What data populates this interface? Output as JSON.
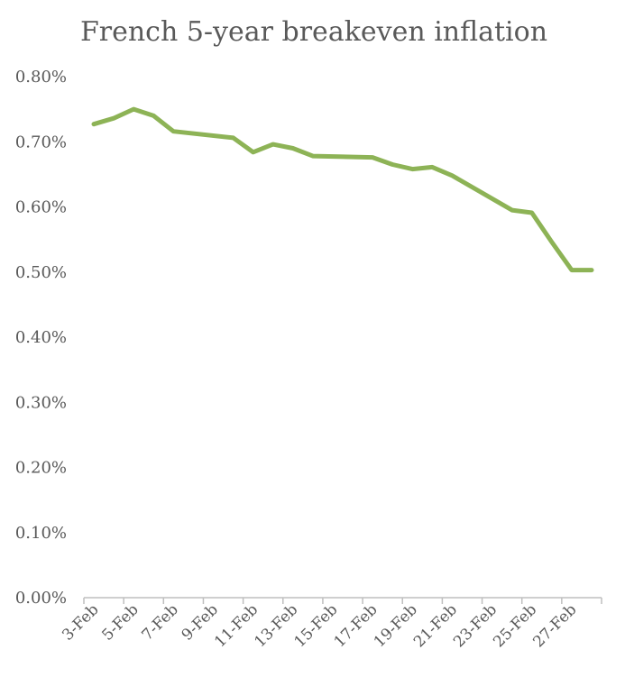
{
  "chart_data": {
    "type": "line",
    "title": "French 5-year breakeven inflation",
    "xlabel": "",
    "ylabel": "",
    "ylim": [
      0,
      0.8
    ],
    "yticks": [
      "0.00%",
      "0.10%",
      "0.20%",
      "0.30%",
      "0.40%",
      "0.50%",
      "0.60%",
      "0.70%",
      "0.80%"
    ],
    "categories": [
      "3-Feb",
      "4-Feb",
      "5-Feb",
      "6-Feb",
      "7-Feb",
      "8-Feb",
      "9-Feb",
      "10-Feb",
      "11-Feb",
      "12-Feb",
      "13-Feb",
      "14-Feb",
      "15-Feb",
      "16-Feb",
      "17-Feb",
      "18-Feb",
      "19-Feb",
      "20-Feb",
      "21-Feb",
      "22-Feb",
      "23-Feb",
      "24-Feb",
      "25-Feb",
      "26-Feb",
      "27-Feb",
      "28-Feb"
    ],
    "xtick_labels": [
      "3-Feb",
      "5-Feb",
      "7-Feb",
      "9-Feb",
      "11-Feb",
      "13-Feb",
      "15-Feb",
      "17-Feb",
      "19-Feb",
      "21-Feb",
      "23-Feb",
      "25-Feb",
      "27-Feb"
    ],
    "series": [
      {
        "color": "#8db356",
        "x": [
          "3-Feb",
          "4-Feb",
          "5-Feb",
          "6-Feb",
          "7-Feb",
          "10-Feb",
          "11-Feb",
          "12-Feb",
          "13-Feb",
          "14-Feb",
          "17-Feb",
          "18-Feb",
          "19-Feb",
          "20-Feb",
          "21-Feb",
          "24-Feb",
          "25-Feb",
          "26-Feb",
          "27-Feb",
          "28-Feb"
        ],
        "values": [
          0.727,
          0.736,
          0.75,
          0.74,
          0.716,
          0.706,
          0.684,
          0.696,
          0.69,
          0.678,
          0.676,
          0.665,
          0.658,
          0.661,
          0.648,
          0.595,
          0.591,
          0.546,
          0.503,
          0.503
        ]
      }
    ],
    "grid": false,
    "legend": "none"
  }
}
